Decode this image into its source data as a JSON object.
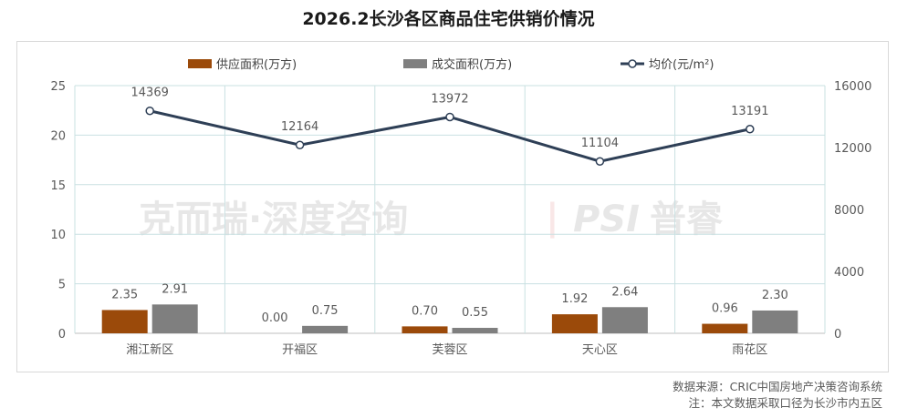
{
  "title": "2026.2长沙各区商品住宅供销价情况",
  "watermark": {
    "left": "克而瑞·深度咨询",
    "right": "普睿"
  },
  "notes": {
    "source": "数据来源：CRIC中国房地产决策咨询系统",
    "caliber": "注：本文数据采取口径为长沙市内五区"
  },
  "colors": {
    "supply": "#9b4a0a",
    "deal": "#7f7f7f",
    "price": "#2e3f56",
    "grid": "#c9e0e2"
  },
  "chart_data": {
    "type": "bar",
    "categories": [
      "湘江新区",
      "开福区",
      "芙蓉区",
      "天心区",
      "雨花区"
    ],
    "series": [
      {
        "name": "供应面积(万方)",
        "type": "bar",
        "axis": "left",
        "values": [
          2.35,
          0.0,
          0.7,
          1.92,
          0.96
        ],
        "labels": [
          "2.35",
          "0.00",
          "0.70",
          "1.92",
          "0.96"
        ]
      },
      {
        "name": "成交面积(万方)",
        "type": "bar",
        "axis": "left",
        "values": [
          2.91,
          0.75,
          0.55,
          2.64,
          2.3
        ],
        "labels": [
          "2.91",
          "0.75",
          "0.55",
          "2.64",
          "2.30"
        ]
      },
      {
        "name": "均价(元/m²)",
        "type": "line",
        "axis": "right",
        "values": [
          14369,
          12164,
          13972,
          11104,
          13191
        ],
        "labels": [
          "14369",
          "12164",
          "13972",
          "11104",
          "13191"
        ]
      }
    ],
    "y_left": {
      "min": 0,
      "max": 25,
      "ticks": [
        "0",
        "5",
        "10",
        "15",
        "20",
        "25"
      ]
    },
    "y_right": {
      "min": 0,
      "max": 16000,
      "ticks": [
        "0",
        "4000",
        "8000",
        "12000",
        "16000"
      ]
    },
    "grid": true,
    "legend_position": "top"
  }
}
